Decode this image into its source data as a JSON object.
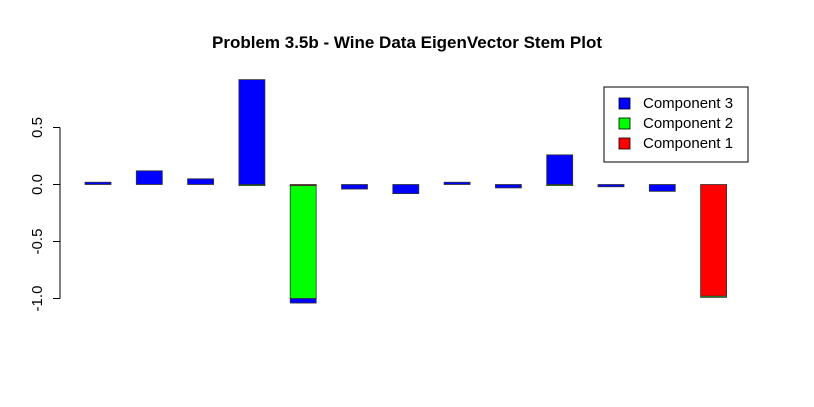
{
  "chart_data": {
    "type": "bar",
    "title": "Problem 3.5b - Wine Data EigenVector Stem Plot",
    "xlabel": "",
    "ylabel": "",
    "ylim": [
      -1.05,
      0.95
    ],
    "yticks": [
      -1.0,
      -0.5,
      0.0,
      0.5
    ],
    "ytick_labels": [
      "-1.0",
      "-0.5",
      "0.0",
      "0.5"
    ],
    "grid": false,
    "legend_position": "top-right",
    "colors": {
      "Component 1": "#ff0000",
      "Component 2": "#00ff00",
      "Component 3": "#0000ff"
    },
    "series": [
      {
        "name": "Component 1",
        "values": [
          0.0,
          0.0,
          0.0,
          0.0,
          -0.01,
          0.0,
          0.0,
          0.0,
          0.0,
          0.0,
          0.0,
          0.0,
          -0.98
        ]
      },
      {
        "name": "Component 2",
        "values": [
          0.0,
          0.0,
          0.0,
          -0.01,
          -0.99,
          0.0,
          0.0,
          0.0,
          0.0,
          -0.01,
          0.0,
          0.0,
          -0.01
        ]
      },
      {
        "name": "Component 3",
        "values": [
          0.02,
          0.12,
          0.05,
          0.92,
          -0.04,
          -0.04,
          -0.08,
          0.02,
          -0.03,
          0.26,
          -0.02,
          -0.06,
          0.0
        ]
      }
    ],
    "legend": [
      "Component 3",
      "Component 2",
      "Component 1"
    ]
  }
}
